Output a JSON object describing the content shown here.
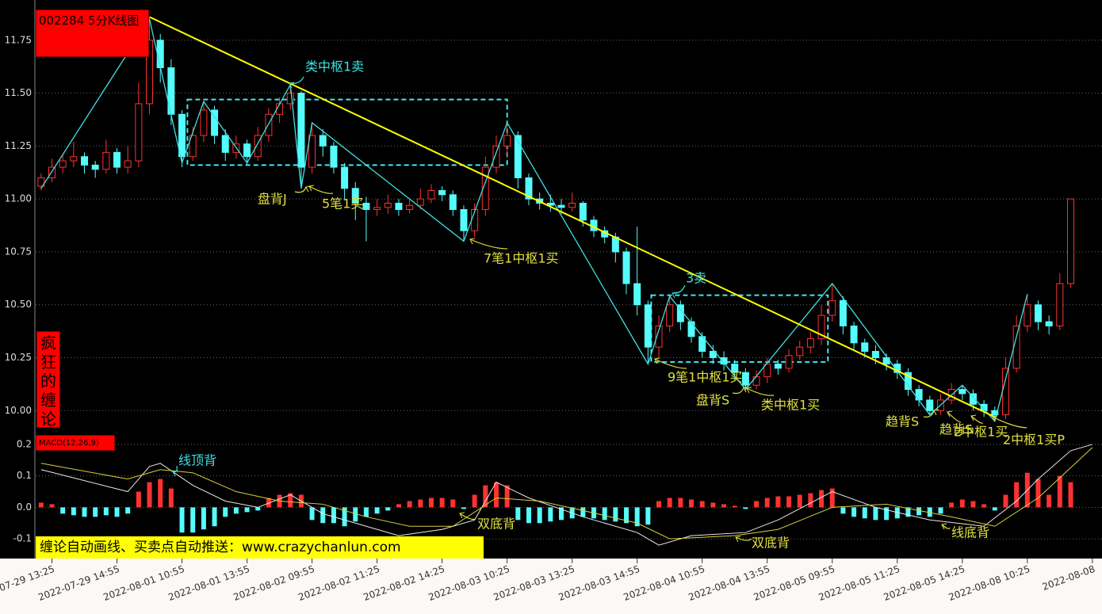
{
  "chart_data": [
    {
      "type": "candlestick",
      "title": "002284 5分K线图",
      "side_label": "疯狂的缠论",
      "up_color": "#ff3232",
      "down_color": "#54fcfc",
      "ohlc": [
        [
          11.06,
          11.12,
          11.04,
          11.1
        ],
        [
          11.1,
          11.19,
          11.08,
          11.15
        ],
        [
          11.15,
          11.21,
          11.12,
          11.18
        ],
        [
          11.18,
          11.27,
          11.15,
          11.2
        ],
        [
          11.2,
          11.22,
          11.12,
          11.16
        ],
        [
          11.16,
          11.18,
          11.1,
          11.14
        ],
        [
          11.14,
          11.28,
          11.12,
          11.22
        ],
        [
          11.22,
          11.24,
          11.12,
          11.15
        ],
        [
          11.15,
          11.25,
          11.12,
          11.18
        ],
        [
          11.18,
          11.55,
          11.15,
          11.45
        ],
        [
          11.45,
          11.85,
          11.4,
          11.75
        ],
        [
          11.75,
          11.78,
          11.55,
          11.62
        ],
        [
          11.62,
          11.66,
          11.35,
          11.4
        ],
        [
          11.4,
          11.42,
          11.15,
          11.2
        ],
        [
          11.2,
          11.34,
          11.18,
          11.3
        ],
        [
          11.3,
          11.47,
          11.27,
          11.42
        ],
        [
          11.42,
          11.44,
          11.26,
          11.3
        ],
        [
          11.3,
          11.33,
          11.18,
          11.22
        ],
        [
          11.22,
          11.3,
          11.19,
          11.26
        ],
        [
          11.26,
          11.28,
          11.16,
          11.2
        ],
        [
          11.2,
          11.34,
          11.18,
          11.3
        ],
        [
          11.3,
          11.43,
          11.27,
          11.4
        ],
        [
          11.4,
          11.48,
          11.36,
          11.45
        ],
        [
          11.45,
          11.54,
          11.42,
          11.5
        ],
        [
          11.5,
          11.51,
          11.05,
          11.15
        ],
        [
          11.15,
          11.36,
          11.12,
          11.3
        ],
        [
          11.3,
          11.33,
          11.2,
          11.25
        ],
        [
          11.25,
          11.27,
          11.12,
          11.15
        ],
        [
          11.15,
          11.17,
          11.0,
          11.05
        ],
        [
          11.05,
          11.08,
          10.9,
          10.98
        ],
        [
          10.98,
          11.01,
          10.8,
          10.95
        ],
        [
          10.95,
          11.0,
          10.92,
          10.96
        ],
        [
          10.96,
          11.02,
          10.93,
          10.98
        ],
        [
          10.98,
          11.0,
          10.92,
          10.95
        ],
        [
          10.95,
          11.0,
          10.93,
          10.97
        ],
        [
          10.97,
          11.05,
          10.95,
          11.0
        ],
        [
          11.0,
          11.07,
          10.98,
          11.04
        ],
        [
          11.04,
          11.06,
          10.99,
          11.02
        ],
        [
          11.02,
          11.04,
          10.92,
          10.95
        ],
        [
          10.95,
          10.97,
          10.8,
          10.85
        ],
        [
          10.85,
          10.98,
          10.82,
          10.95
        ],
        [
          10.95,
          11.2,
          10.92,
          11.15
        ],
        [
          11.15,
          11.3,
          11.12,
          11.25
        ],
        [
          11.25,
          11.36,
          11.2,
          11.3
        ],
        [
          11.3,
          11.32,
          11.05,
          11.1
        ],
        [
          11.1,
          11.12,
          10.97,
          11.0
        ],
        [
          11.0,
          11.03,
          10.95,
          10.98
        ],
        [
          10.98,
          11.02,
          10.94,
          10.97
        ],
        [
          10.97,
          11.0,
          10.93,
          10.96
        ],
        [
          10.96,
          11.03,
          10.94,
          10.98
        ],
        [
          10.98,
          10.99,
          10.87,
          10.9
        ],
        [
          10.9,
          10.92,
          10.82,
          10.85
        ],
        [
          10.85,
          10.87,
          10.79,
          10.82
        ],
        [
          10.82,
          10.84,
          10.7,
          10.75
        ],
        [
          10.75,
          10.77,
          10.55,
          10.6
        ],
        [
          10.6,
          10.87,
          10.45,
          10.5
        ],
        [
          10.5,
          10.52,
          10.22,
          10.3
        ],
        [
          10.3,
          10.45,
          10.25,
          10.4
        ],
        [
          10.4,
          10.54,
          10.37,
          10.5
        ],
        [
          10.5,
          10.52,
          10.38,
          10.42
        ],
        [
          10.42,
          10.44,
          10.32,
          10.35
        ],
        [
          10.35,
          10.37,
          10.25,
          10.28
        ],
        [
          10.28,
          10.31,
          10.22,
          10.25
        ],
        [
          10.25,
          10.28,
          10.19,
          10.22
        ],
        [
          10.22,
          10.24,
          10.14,
          10.18
        ],
        [
          10.18,
          10.2,
          10.1,
          10.12
        ],
        [
          10.12,
          10.19,
          10.1,
          10.16
        ],
        [
          10.16,
          10.25,
          10.13,
          10.22
        ],
        [
          10.22,
          10.24,
          10.17,
          10.2
        ],
        [
          10.2,
          10.29,
          10.18,
          10.26
        ],
        [
          10.26,
          10.33,
          10.24,
          10.3
        ],
        [
          10.3,
          10.37,
          10.27,
          10.34
        ],
        [
          10.34,
          10.5,
          10.31,
          10.45
        ],
        [
          10.45,
          10.6,
          10.42,
          10.52
        ],
        [
          10.52,
          10.54,
          10.36,
          10.4
        ],
        [
          10.4,
          10.42,
          10.29,
          10.32
        ],
        [
          10.32,
          10.34,
          10.25,
          10.28
        ],
        [
          10.28,
          10.31,
          10.22,
          10.25
        ],
        [
          10.25,
          10.27,
          10.19,
          10.22
        ],
        [
          10.22,
          10.24,
          10.15,
          10.18
        ],
        [
          10.18,
          10.2,
          10.07,
          10.1
        ],
        [
          10.1,
          10.12,
          10.02,
          10.05
        ],
        [
          10.05,
          10.07,
          9.98,
          10.0
        ],
        [
          10.0,
          10.08,
          9.98,
          10.05
        ],
        [
          10.05,
          10.13,
          10.03,
          10.1
        ],
        [
          10.1,
          10.12,
          10.05,
          10.08
        ],
        [
          10.08,
          10.1,
          10.0,
          10.03
        ],
        [
          10.03,
          10.05,
          9.97,
          10.0
        ],
        [
          10.0,
          10.02,
          9.95,
          9.98
        ],
        [
          9.98,
          10.25,
          9.96,
          10.2
        ],
        [
          10.2,
          10.45,
          10.18,
          10.4
        ],
        [
          10.4,
          10.55,
          10.37,
          10.5
        ],
        [
          10.5,
          10.52,
          10.38,
          10.42
        ],
        [
          10.42,
          10.45,
          10.36,
          10.4
        ],
        [
          10.4,
          10.65,
          10.38,
          10.6
        ],
        [
          10.6,
          11.0,
          10.58,
          11.0
        ]
      ],
      "ylim": [
        9.9,
        11.94
      ],
      "yticks": [
        11.75,
        {
          "value": 11.5,
          "label": "11.50"
        },
        11.25,
        {
          "value": 11.0,
          "label": "11.00"
        },
        10.75,
        {
          "value": 10.5,
          "label": "10.50"
        },
        10.25,
        {
          "value": 10.0,
          "label": "10.00"
        }
      ],
      "xticks": [
        {
          "value": 1,
          "label": "2022-07-29 13:25"
        },
        {
          "value": 7,
          "label": "2022-07-29 14:55"
        },
        {
          "value": 13,
          "label": "2022-08-01 10:55"
        },
        {
          "value": 19,
          "label": "2022-08-01 13:55"
        },
        {
          "value": 25,
          "label": "2022-08-02 09:55"
        },
        {
          "value": 31,
          "label": "2022-08-02 11:25"
        },
        {
          "value": 37,
          "label": "2022-08-02 14:25"
        },
        {
          "value": 43,
          "label": "2022-08-03 10:25"
        },
        {
          "value": 49,
          "label": "2022-08-03 13:25"
        },
        {
          "value": 55,
          "label": "2022-08-03 14:55"
        },
        {
          "value": 61,
          "label": "2022-08-04 10:55"
        },
        {
          "value": 67,
          "label": "2022-08-04 13:55"
        },
        {
          "value": 73,
          "label": "2022-08-05 09:55"
        },
        {
          "value": 79,
          "label": "2022-08-05 11:25"
        },
        {
          "value": 85,
          "label": "2022-08-05 14:25"
        },
        {
          "value": 91,
          "label": "2022-08-08 10:25"
        },
        {
          "value": 97,
          "label": "2022-08-08"
        }
      ],
      "grid": true,
      "strokes": {
        "color": "#40e0e0",
        "x": [
          0,
          10,
          13,
          15,
          19,
          23,
          24,
          25,
          39,
          43,
          56,
          58,
          65,
          73,
          82,
          85,
          88,
          91
        ],
        "values": [
          11.05,
          11.85,
          11.17,
          11.46,
          11.17,
          11.54,
          11.05,
          11.36,
          10.8,
          11.36,
          10.22,
          10.54,
          10.1,
          10.6,
          9.98,
          10.12,
          9.95,
          10.55
        ]
      },
      "trend_line": {
        "color": "#ffff00",
        "x": [
          10,
          88
        ],
        "values": [
          11.86,
          9.97
        ]
      },
      "zone_color": "#40e8f0",
      "zones": [
        {
          "x": [
            13.5,
            43
          ],
          "values": [
            11.16,
            11.47
          ]
        },
        {
          "x": [
            56.3,
            72.6
          ],
          "values": [
            10.23,
            10.545
          ]
        }
      ],
      "annotations": [
        {
          "text": "类中枢1卖",
          "color": "#40e0e0"
        },
        {
          "text": "盘背J",
          "color": "#e0e040"
        },
        {
          "text": "5笔1买",
          "color": "#e0e040"
        },
        {
          "text": "7笔1中枢1买",
          "color": "#e0e040"
        },
        {
          "text": "3卖",
          "color": "#40e0e0"
        },
        {
          "text": "9笔1中枢1买",
          "color": "#e0e040"
        },
        {
          "text": "盘背S",
          "color": "#e0e040"
        },
        {
          "text": "类中枢1买",
          "color": "#e0e040"
        },
        {
          "text": "趋背S",
          "color": "#e0e040"
        },
        {
          "text": "趋背S",
          "color": "#e0e040"
        },
        {
          "text": "2中枢1买",
          "color": "#e0e040"
        },
        {
          "text": "2中枢1买P",
          "color": "#e0e040"
        }
      ]
    },
    {
      "type": "macd",
      "title": "MACD(12,26,9)",
      "up_color": "#ff3232",
      "down_color": "#54fcfc",
      "values": [
        0.015,
        0.01,
        -0.02,
        -0.025,
        -0.03,
        -0.03,
        -0.025,
        -0.03,
        -0.02,
        0.05,
        0.08,
        0.09,
        0.06,
        -0.08,
        -0.08,
        -0.07,
        -0.06,
        -0.03,
        -0.02,
        -0.015,
        -0.01,
        0.03,
        0.04,
        0.045,
        0.04,
        -0.04,
        -0.05,
        -0.05,
        -0.06,
        -0.045,
        -0.03,
        -0.02,
        -0.01,
        0.01,
        0.02,
        0.025,
        0.03,
        0.03,
        0.025,
        -0.005,
        0.04,
        0.07,
        0.08,
        0.07,
        -0.04,
        -0.05,
        -0.05,
        -0.045,
        -0.04,
        -0.035,
        -0.03,
        -0.035,
        -0.04,
        -0.045,
        -0.05,
        -0.06,
        -0.055,
        0.02,
        0.03,
        0.03,
        0.025,
        0.02,
        0.015,
        0.01,
        0.005,
        -0.005,
        0.02,
        0.03,
        0.035,
        0.035,
        0.04,
        0.045,
        0.055,
        0.06,
        -0.02,
        -0.03,
        -0.035,
        -0.04,
        -0.04,
        -0.035,
        -0.03,
        -0.025,
        -0.03,
        -0.02,
        0.015,
        0.025,
        0.02,
        0.01,
        -0.01,
        0.04,
        0.08,
        0.11,
        0.09,
        0.04,
        0.1,
        0.08
      ],
      "ylim": [
        -0.15,
        0.22
      ],
      "yticks": [
        0.2,
        0.1,
        {
          "value": 0,
          "label": "0.0"
        },
        -0.1
      ],
      "grid": true,
      "series": [
        {
          "color": "#e8e8e8",
          "x": [
            0,
            8,
            10,
            11,
            14,
            17,
            20,
            23,
            26,
            30,
            33,
            37,
            40,
            42,
            45,
            50,
            55,
            57,
            60,
            65,
            68,
            73,
            77,
            82,
            87,
            90,
            92,
            95,
            97
          ],
          "values": [
            0.12,
            0.05,
            0.13,
            0.14,
            0.07,
            0.02,
            0.0,
            0.04,
            -0.02,
            -0.06,
            -0.09,
            -0.07,
            -0.04,
            0.08,
            0.03,
            -0.03,
            -0.08,
            -0.12,
            -0.09,
            -0.08,
            -0.04,
            0.05,
            0.0,
            -0.04,
            -0.06,
            0.02,
            0.09,
            0.18,
            0.2
          ]
        },
        {
          "color": "#d8d040",
          "x": [
            0,
            8,
            11,
            14,
            18,
            22,
            26,
            30,
            34,
            38,
            42,
            46,
            50,
            55,
            58,
            64,
            68,
            73,
            78,
            84,
            88,
            92,
            97
          ],
          "values": [
            0.14,
            0.09,
            0.12,
            0.11,
            0.05,
            0.02,
            0.01,
            -0.03,
            -0.06,
            -0.06,
            0.03,
            0.02,
            -0.01,
            -0.05,
            -0.1,
            -0.09,
            -0.07,
            0.0,
            0.01,
            -0.03,
            -0.06,
            0.03,
            0.19
          ]
        }
      ],
      "annotations": [
        {
          "text": "线顶背",
          "color": "#40e0e0"
        },
        {
          "text": "双底背",
          "color": "#e0e040"
        },
        {
          "text": "双底背",
          "color": "#e0e040"
        },
        {
          "text": "线底背",
          "color": "#e0e040"
        }
      ]
    }
  ],
  "banner": "缠论自动画线、买卖点自动推送：www.crazychanlun.com"
}
